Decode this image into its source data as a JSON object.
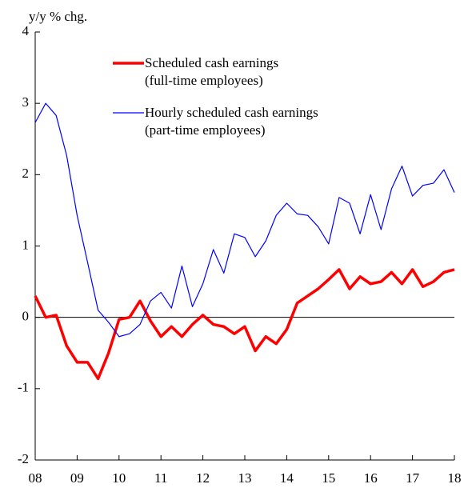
{
  "chart_data": {
    "type": "line",
    "y_axis_label": "y/y % chg.",
    "x": [
      2008,
      2008.25,
      2008.5,
      2008.75,
      2009,
      2009.25,
      2009.5,
      2009.75,
      2010,
      2010.25,
      2010.5,
      2010.75,
      2011,
      2011.25,
      2011.5,
      2011.75,
      2012,
      2012.25,
      2012.5,
      2012.75,
      2013,
      2013.25,
      2013.5,
      2013.75,
      2014,
      2014.25,
      2014.5,
      2014.75,
      2015,
      2015.25,
      2015.5,
      2015.75,
      2016,
      2016.25,
      2016.5,
      2016.75,
      2017,
      2017.25,
      2017.5,
      2017.75,
      2018
    ],
    "series": [
      {
        "name": "Scheduled cash earnings\n(full-time employees)",
        "color": "#ff0000",
        "width": 3.5,
        "values": [
          0.3,
          0.0,
          0.03,
          -0.4,
          -0.63,
          -0.63,
          -0.86,
          -0.5,
          -0.03,
          0.0,
          0.23,
          -0.05,
          -0.27,
          -0.13,
          -0.27,
          -0.1,
          0.03,
          -0.1,
          -0.13,
          -0.23,
          -0.13,
          -0.47,
          -0.27,
          -0.37,
          -0.17,
          0.2,
          0.3,
          0.4,
          0.53,
          0.67,
          0.4,
          0.57,
          0.47,
          0.5,
          0.63,
          0.47,
          0.67,
          0.43,
          0.5,
          0.63,
          0.67
        ]
      },
      {
        "name": "Hourly scheduled cash earnings\n(part-time employees)",
        "color": "#0000ff",
        "width": 1.2,
        "values": [
          2.73,
          3.0,
          2.83,
          2.27,
          1.43,
          0.77,
          0.1,
          -0.07,
          -0.27,
          -0.23,
          -0.1,
          0.23,
          0.35,
          0.13,
          0.72,
          0.15,
          0.47,
          0.95,
          0.62,
          1.17,
          1.12,
          0.85,
          1.07,
          1.43,
          1.6,
          1.45,
          1.43,
          1.27,
          1.03,
          1.68,
          1.6,
          1.17,
          1.72,
          1.23,
          1.8,
          2.12,
          1.7,
          1.85,
          1.88,
          2.07,
          1.75
        ]
      }
    ],
    "xlim": [
      2008,
      2018
    ],
    "xticks": [
      {
        "value": 2008,
        "label": "08"
      },
      {
        "value": 2009,
        "label": "09"
      },
      {
        "value": 2010,
        "label": "10"
      },
      {
        "value": 2011,
        "label": "11"
      },
      {
        "value": 2012,
        "label": "12"
      },
      {
        "value": 2013,
        "label": "13"
      },
      {
        "value": 2014,
        "label": "14"
      },
      {
        "value": 2015,
        "label": "15"
      },
      {
        "value": 2016,
        "label": "16"
      },
      {
        "value": 2017,
        "label": "17"
      },
      {
        "value": 2018,
        "label": "18"
      }
    ],
    "ylim": [
      -2,
      4
    ],
    "yticks": [
      -2,
      -1,
      0,
      1,
      2,
      3,
      4
    ]
  }
}
